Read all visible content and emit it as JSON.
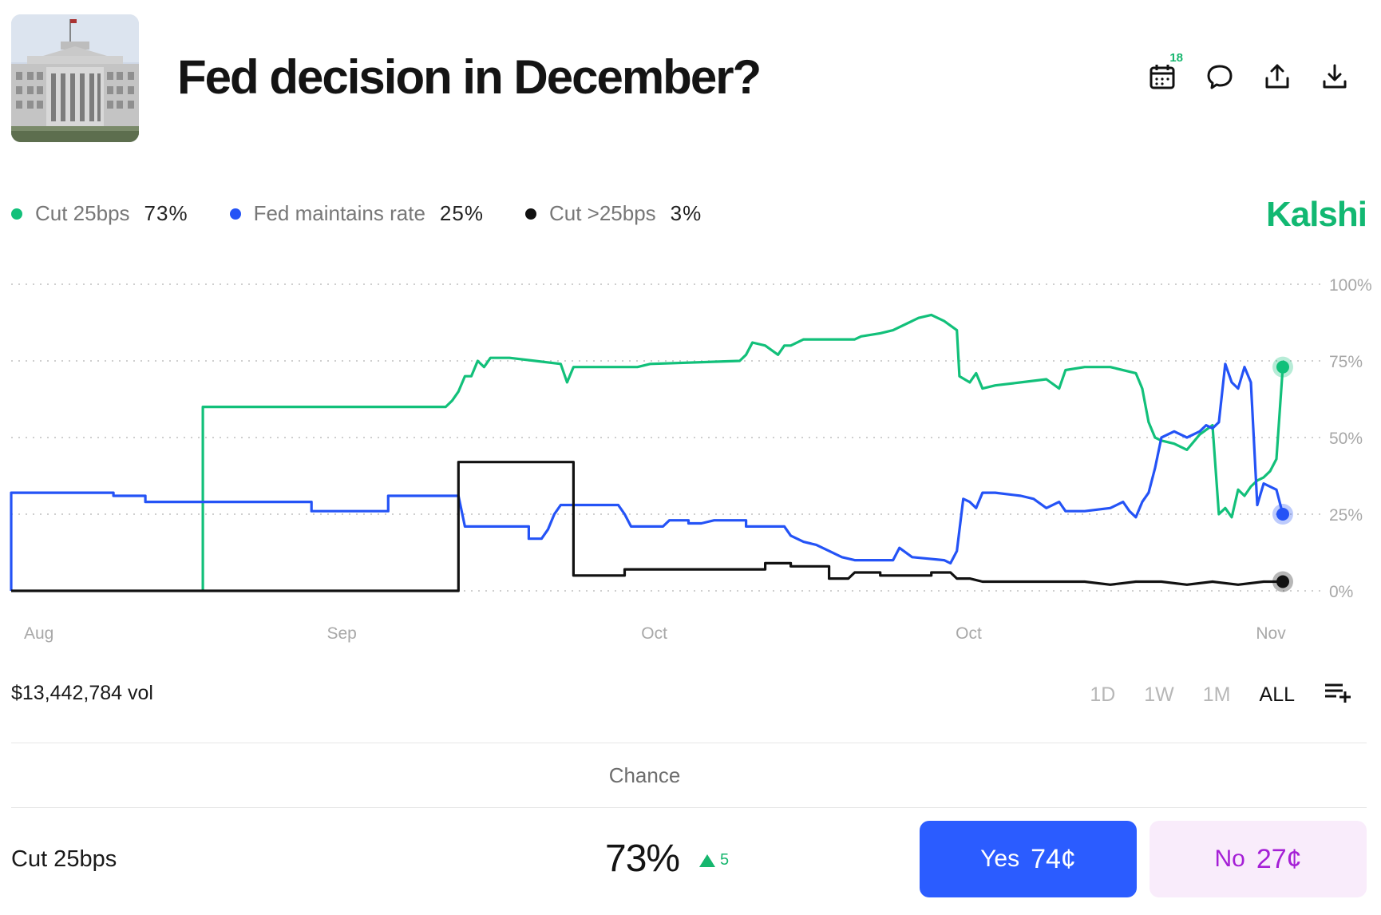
{
  "market": {
    "title": "Fed decision in December?",
    "thumbnail_alt": "Federal Reserve building",
    "brand": "Kalshi"
  },
  "header_icons": {
    "calendar_badge": "18",
    "icons": [
      "calendar-icon",
      "comment-icon",
      "share-icon",
      "download-icon"
    ]
  },
  "legend": [
    {
      "name": "Cut 25bps",
      "value": "73%",
      "color": "#12c07a"
    },
    {
      "name": "Fed maintains rate",
      "value": "25%",
      "color": "#2453f6"
    },
    {
      "name": "Cut >25bps",
      "value": "3%",
      "color": "#111111"
    }
  ],
  "chart_data": {
    "type": "line",
    "title": "",
    "xlabel": "",
    "ylabel": "",
    "ylim": [
      0,
      100
    ],
    "y_ticks": [
      "100%",
      "75%",
      "50%",
      "25%",
      "0%"
    ],
    "x_ticks": [
      "Aug",
      "Sep",
      "Oct",
      "Oct",
      "Nov"
    ],
    "x_domain": [
      0,
      100
    ],
    "x_tick_positions": [
      1,
      24.7,
      49.3,
      73.9,
      97.4
    ],
    "grid": true,
    "series": [
      {
        "name": "Cut 25bps",
        "color": "#12c07a",
        "points": [
          [
            15,
            0
          ],
          [
            15,
            60
          ],
          [
            34,
            60
          ],
          [
            34.5,
            62
          ],
          [
            35,
            65
          ],
          [
            35.5,
            70
          ],
          [
            36,
            70
          ],
          [
            36.5,
            75
          ],
          [
            37,
            73
          ],
          [
            37.5,
            76
          ],
          [
            39,
            76
          ],
          [
            41,
            75
          ],
          [
            43,
            74
          ],
          [
            43.5,
            68
          ],
          [
            44,
            73
          ],
          [
            49,
            73
          ],
          [
            50,
            74
          ],
          [
            57,
            75
          ],
          [
            57.5,
            77
          ],
          [
            58,
            81
          ],
          [
            59,
            80
          ],
          [
            60,
            77
          ],
          [
            60.5,
            80
          ],
          [
            61,
            80
          ],
          [
            62,
            82
          ],
          [
            64,
            82
          ],
          [
            66,
            82
          ],
          [
            66.5,
            83
          ],
          [
            68,
            84
          ],
          [
            69,
            85
          ],
          [
            71,
            89
          ],
          [
            72,
            90
          ],
          [
            73,
            88
          ],
          [
            74,
            85
          ],
          [
            74.2,
            70
          ],
          [
            75,
            68
          ],
          [
            75.5,
            71
          ],
          [
            76,
            66
          ],
          [
            77,
            67
          ],
          [
            79,
            68
          ],
          [
            81,
            69
          ],
          [
            82,
            66
          ],
          [
            82.5,
            72
          ],
          [
            84,
            73
          ],
          [
            86,
            73
          ],
          [
            88,
            71
          ],
          [
            88.5,
            66
          ],
          [
            89,
            55
          ],
          [
            89.5,
            50
          ],
          [
            90,
            49
          ],
          [
            91,
            48
          ],
          [
            92,
            46
          ],
          [
            93,
            51
          ],
          [
            94,
            54
          ],
          [
            94.5,
            25
          ],
          [
            95,
            27
          ],
          [
            95.5,
            24
          ],
          [
            96,
            33
          ],
          [
            96.5,
            31
          ],
          [
            97,
            34
          ],
          [
            97.5,
            36
          ],
          [
            98,
            37
          ],
          [
            98.5,
            39
          ],
          [
            99,
            43
          ],
          [
            99.5,
            73
          ]
        ]
      },
      {
        "name": "Fed maintains rate",
        "color": "#2453f6",
        "points": [
          [
            0,
            0
          ],
          [
            0,
            32
          ],
          [
            8,
            32
          ],
          [
            8,
            31
          ],
          [
            10.5,
            31
          ],
          [
            10.5,
            29
          ],
          [
            23.5,
            29
          ],
          [
            23.5,
            26
          ],
          [
            29.5,
            26
          ],
          [
            29.5,
            31
          ],
          [
            35,
            31
          ],
          [
            35.5,
            21
          ],
          [
            40.5,
            21
          ],
          [
            40.5,
            17
          ],
          [
            41.5,
            17
          ],
          [
            42,
            20
          ],
          [
            42.5,
            25
          ],
          [
            43,
            28
          ],
          [
            47.5,
            28
          ],
          [
            48,
            25
          ],
          [
            48.5,
            21
          ],
          [
            49.5,
            21
          ],
          [
            51,
            21
          ],
          [
            51.5,
            23
          ],
          [
            53,
            23
          ],
          [
            53,
            22
          ],
          [
            54,
            22
          ],
          [
            55,
            23
          ],
          [
            57.5,
            23
          ],
          [
            57.5,
            21
          ],
          [
            60.5,
            21
          ],
          [
            61,
            18
          ],
          [
            62,
            16
          ],
          [
            63,
            15
          ],
          [
            64,
            13
          ],
          [
            65,
            11
          ],
          [
            66,
            10
          ],
          [
            68,
            10
          ],
          [
            69,
            10
          ],
          [
            69.5,
            14
          ],
          [
            70.5,
            11
          ],
          [
            73,
            10
          ],
          [
            73.5,
            9
          ],
          [
            74,
            13
          ],
          [
            74.5,
            30
          ],
          [
            75,
            29
          ],
          [
            75.5,
            27
          ],
          [
            76,
            32
          ],
          [
            77,
            32
          ],
          [
            79,
            31
          ],
          [
            80,
            30
          ],
          [
            81,
            27
          ],
          [
            82,
            29
          ],
          [
            82.5,
            26
          ],
          [
            84,
            26
          ],
          [
            86,
            27
          ],
          [
            87,
            29
          ],
          [
            87.5,
            26
          ],
          [
            88,
            24
          ],
          [
            88.5,
            29
          ],
          [
            89,
            32
          ],
          [
            89.5,
            40
          ],
          [
            90,
            50
          ],
          [
            91,
            52
          ],
          [
            92,
            50
          ],
          [
            93,
            52
          ],
          [
            93.5,
            54
          ],
          [
            94,
            53
          ],
          [
            94.5,
            55
          ],
          [
            95,
            74
          ],
          [
            95.5,
            68
          ],
          [
            96,
            66
          ],
          [
            96.5,
            73
          ],
          [
            97,
            68
          ],
          [
            97.5,
            28
          ],
          [
            98,
            35
          ],
          [
            98.5,
            34
          ],
          [
            99,
            33
          ],
          [
            99.5,
            25
          ]
        ]
      },
      {
        "name": "Cut >25bps",
        "color": "#111111",
        "points": [
          [
            0,
            0
          ],
          [
            35,
            0
          ],
          [
            35,
            42
          ],
          [
            44,
            42
          ],
          [
            44,
            5
          ],
          [
            48,
            5
          ],
          [
            48,
            7
          ],
          [
            52,
            7
          ],
          [
            57,
            7
          ],
          [
            59,
            7
          ],
          [
            59,
            9
          ],
          [
            61,
            9
          ],
          [
            61,
            8
          ],
          [
            64,
            8
          ],
          [
            64,
            4
          ],
          [
            65.5,
            4
          ],
          [
            66,
            6
          ],
          [
            68,
            6
          ],
          [
            68,
            5
          ],
          [
            70,
            5
          ],
          [
            72,
            5
          ],
          [
            72,
            6
          ],
          [
            73.5,
            6
          ],
          [
            74,
            4
          ],
          [
            75,
            4
          ],
          [
            76,
            3
          ],
          [
            78,
            3
          ],
          [
            80,
            3
          ],
          [
            82,
            3
          ],
          [
            84,
            3
          ],
          [
            86,
            2
          ],
          [
            88,
            3
          ],
          [
            90,
            3
          ],
          [
            92,
            2
          ],
          [
            94,
            3
          ],
          [
            96,
            2
          ],
          [
            98,
            3
          ],
          [
            99.5,
            3
          ]
        ]
      }
    ]
  },
  "footer": {
    "volume": "$13,442,784 vol",
    "ranges": [
      "1D",
      "1W",
      "1M",
      "ALL"
    ],
    "active_range": "ALL"
  },
  "table": {
    "header": "Chance",
    "row": {
      "label": "Cut 25bps",
      "chance": "73%",
      "delta": "5",
      "yes_label": "Yes",
      "yes_price": "74¢",
      "no_label": "No",
      "no_price": "27¢"
    }
  }
}
